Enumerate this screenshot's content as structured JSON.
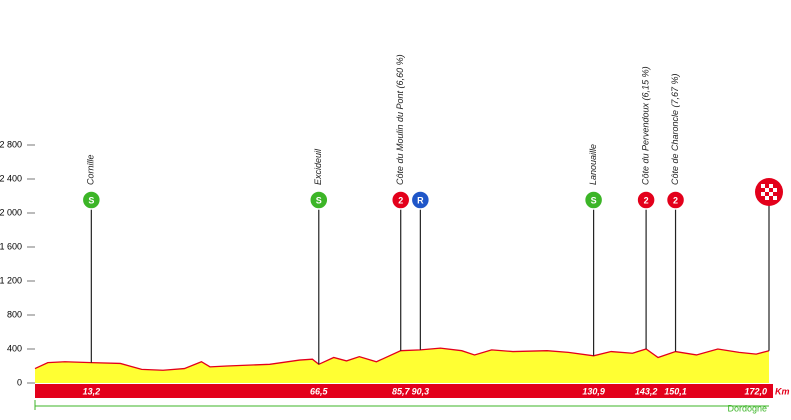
{
  "chart_data": {
    "type": "profile",
    "unit": "Km",
    "region": "Dordogne",
    "xlim": [
      0,
      172
    ],
    "ylim": [
      0,
      2800
    ],
    "yticks": [
      0,
      400,
      800,
      {
        "value": 1200,
        "label": "1 200"
      },
      {
        "value": 1600,
        "label": "1 600"
      },
      {
        "value": 2000,
        "label": "2 000"
      },
      {
        "value": 2400,
        "label": "2 400"
      },
      {
        "value": 2800,
        "label": "2 800"
      }
    ],
    "profile": {
      "color": "#e3001b",
      "fill": "#ffff33",
      "km": [
        0,
        3,
        7,
        13.2,
        20,
        25,
        30,
        35,
        39,
        41,
        45,
        55,
        62,
        65,
        66.5,
        70,
        73,
        76,
        80,
        85.7,
        90.3,
        95,
        100,
        103,
        107,
        112,
        120,
        125,
        130.9,
        135,
        140,
        143.2,
        146,
        150.1,
        155,
        160,
        165,
        169,
        172
      ],
      "elevation": [
        170,
        240,
        250,
        240,
        230,
        160,
        150,
        170,
        250,
        190,
        200,
        220,
        270,
        280,
        220,
        300,
        260,
        310,
        250,
        380,
        390,
        410,
        380,
        330,
        390,
        370,
        380,
        360,
        320,
        370,
        350,
        400,
        300,
        370,
        330,
        400,
        360,
        340,
        380
      ]
    },
    "waypoints": [
      {
        "name": "Cornille",
        "km": {
          "value": 13.2,
          "label": "13,2"
        },
        "badge": "S",
        "color": "#3cb527"
      },
      {
        "name": "Excideuil",
        "km": {
          "value": 66.5,
          "label": "66,5"
        },
        "badge": "S",
        "color": "#3cb527"
      },
      {
        "name": "Côte du Moulin du Pont (6,60 %)",
        "km": {
          "value": 85.7,
          "label": "85,7"
        },
        "badge": "2",
        "color": "#e3001b"
      },
      {
        "name": null,
        "km": {
          "value": 90.3,
          "label": "90,3"
        },
        "badge": "R",
        "color": "#1f56c8"
      },
      {
        "name": "Lanouaille",
        "km": {
          "value": 130.9,
          "label": "130,9"
        },
        "badge": "S",
        "color": "#3cb527"
      },
      {
        "name": "Côte du Pervendoux (6,15 %)",
        "km": {
          "value": 143.2,
          "label": "143,2"
        },
        "badge": "2",
        "color": "#e3001b"
      },
      {
        "name": "Côte de Charoncle (7,67 %)",
        "km": {
          "value": 150.1,
          "label": "150,1"
        },
        "badge": "2",
        "color": "#e3001b"
      },
      {
        "name": null,
        "km": {
          "value": 172,
          "label": "172,0"
        },
        "badge": null,
        "color": "#e3001b"
      }
    ]
  }
}
